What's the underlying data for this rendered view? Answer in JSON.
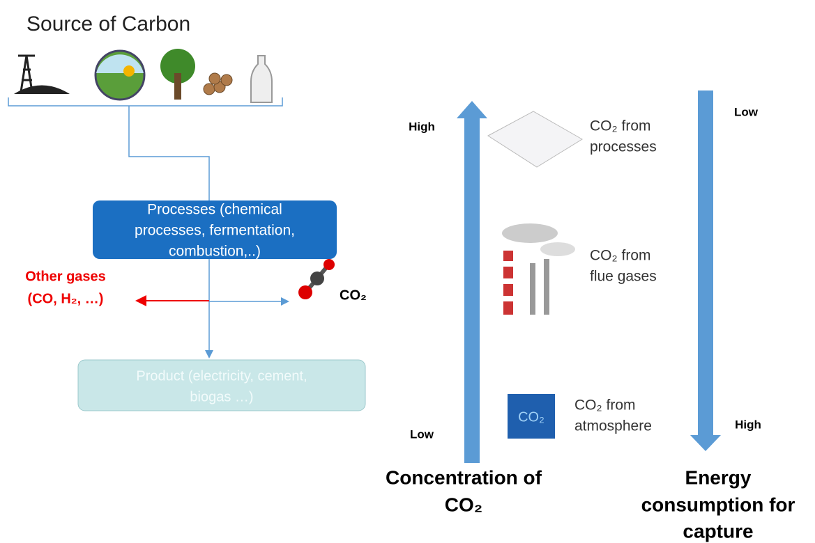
{
  "title": "Source of Carbon",
  "processes_box": {
    "lines": [
      "Processes (chemical",
      "processes, fermentation,",
      "combustion,..)"
    ]
  },
  "other_gases": {
    "lines": [
      "Other gases",
      "(CO, H₂, …)"
    ]
  },
  "co2_output": "CO₂",
  "product_box": {
    "lines": [
      "Product (electricity, cement,",
      "biogas …)"
    ]
  },
  "concentration_axis": {
    "high": "High",
    "low": "Low",
    "label": [
      "Concentration of",
      "CO₂"
    ]
  },
  "energy_axis": {
    "low": "Low",
    "high": "High",
    "label": [
      "Energy",
      "consumption for",
      "capture"
    ]
  },
  "sources": [
    {
      "lines": [
        "CO₂ from",
        "processes"
      ]
    },
    {
      "lines": [
        "CO₂ from",
        "flue gases"
      ]
    },
    {
      "lines": [
        "CO₂ from",
        "atmosphere"
      ]
    }
  ]
}
